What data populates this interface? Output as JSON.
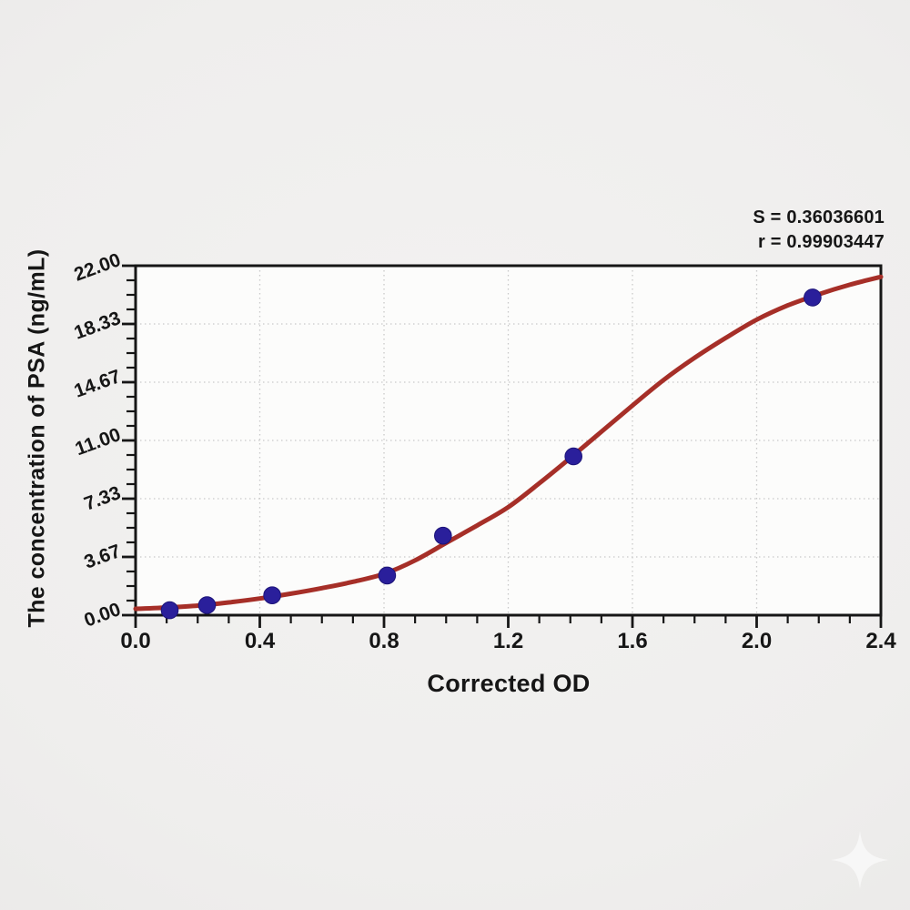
{
  "chart_data": {
    "type": "scatter",
    "subtype": "elisa-standard-curve-with-sigmoid-fit",
    "title": "",
    "xlabel": "Corrected OD",
    "ylabel": "The concentration of PSA (ng/mL)",
    "xlim": [
      0,
      2.4
    ],
    "ylim": [
      0,
      22
    ],
    "grid": {
      "style": "dotted",
      "on_major_ticks": true
    },
    "legend": "none",
    "x_ticks": {
      "labels": [
        "0.0",
        "0.4",
        "0.8",
        "1.2",
        "1.6",
        "2.0",
        "2.4"
      ],
      "values": [
        0,
        0.4,
        0.8,
        1.2,
        1.6,
        2.0,
        2.4
      ],
      "minor_step": 0.1
    },
    "y_ticks": {
      "labels": [
        "0.00",
        "3.67",
        "7.33",
        "11.00",
        "14.67",
        "18.33",
        "22.00"
      ],
      "values": [
        0,
        3.6667,
        7.3333,
        11,
        14.6667,
        18.3333,
        22
      ],
      "minor_step": 0.9167,
      "label_rotation_deg": -20
    },
    "annotation": {
      "line1": "S = 0.36036601",
      "line2": "r = 0.99903447",
      "position": "top-right"
    },
    "points": [
      [
        0.11,
        0.31
      ],
      [
        0.23,
        0.63
      ],
      [
        0.44,
        1.25
      ],
      [
        0.81,
        2.5
      ],
      [
        0.99,
        5.0
      ],
      [
        1.41,
        10.0
      ],
      [
        2.18,
        20.0
      ]
    ],
    "fit_curve": [
      [
        0.0,
        0.4
      ],
      [
        0.1,
        0.48
      ],
      [
        0.2,
        0.6
      ],
      [
        0.3,
        0.8
      ],
      [
        0.4,
        1.05
      ],
      [
        0.5,
        1.35
      ],
      [
        0.6,
        1.7
      ],
      [
        0.7,
        2.1
      ],
      [
        0.8,
        2.6
      ],
      [
        0.9,
        3.45
      ],
      [
        1.0,
        4.55
      ],
      [
        1.1,
        5.65
      ],
      [
        1.2,
        6.8
      ],
      [
        1.3,
        8.3
      ],
      [
        1.4,
        9.9
      ],
      [
        1.5,
        11.55
      ],
      [
        1.6,
        13.2
      ],
      [
        1.7,
        14.8
      ],
      [
        1.8,
        16.2
      ],
      [
        1.9,
        17.45
      ],
      [
        2.0,
        18.6
      ],
      [
        2.1,
        19.5
      ],
      [
        2.2,
        20.2
      ],
      [
        2.3,
        20.8
      ],
      [
        2.4,
        21.3
      ]
    ],
    "colors": {
      "curve": "#a62f28",
      "points": "#2a1f9b",
      "point_edge": "#1c1478",
      "grid": "#c9c9c9",
      "axis": "#161616",
      "plot_bg": "#fcfcfb",
      "page_bg": "#efeeed",
      "text": "#161616"
    }
  },
  "icons": {
    "watermark": "four-point-sparkle"
  }
}
